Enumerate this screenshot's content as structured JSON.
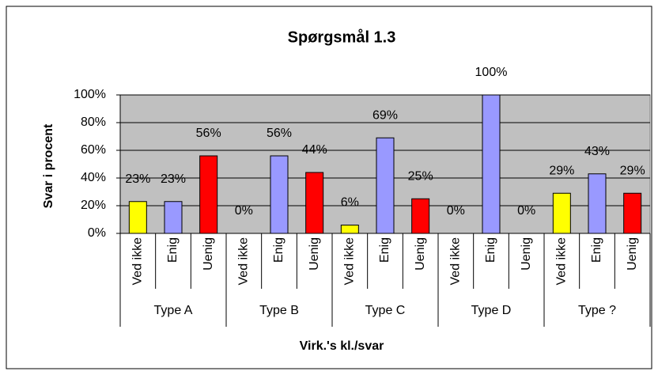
{
  "chart_data": {
    "type": "bar",
    "title": "Spørgsmål 1.3",
    "xlabel": "Virk.'s kl./svar",
    "ylabel": "Svar i procent",
    "categories": [
      "Type A",
      "Type B",
      "Type C",
      "Type D",
      "Type ?"
    ],
    "series": [
      {
        "name": "Ved ikke",
        "color": "#ffff00",
        "values": [
          23,
          0,
          6,
          0,
          29
        ],
        "value_labels": [
          "23%",
          "0%",
          "6%",
          "0%",
          "29%"
        ]
      },
      {
        "name": "Enig",
        "color": "#9999ff",
        "values": [
          23,
          56,
          69,
          100,
          43
        ],
        "value_labels": [
          "23%",
          "56%",
          "69%",
          "100%",
          "43%"
        ]
      },
      {
        "name": "Uenig",
        "color": "#ff0000",
        "values": [
          56,
          44,
          25,
          0,
          29
        ],
        "value_labels": [
          "56%",
          "44%",
          "25%",
          "0%",
          "29%"
        ]
      }
    ],
    "ylim": [
      0,
      100
    ],
    "yticks": [
      {
        "value": 0,
        "label": "0%"
      },
      {
        "value": 20,
        "label": "20%"
      },
      {
        "value": 40,
        "label": "40%"
      },
      {
        "value": 60,
        "label": "60%"
      },
      {
        "value": 80,
        "label": "80%"
      },
      {
        "value": 100,
        "label": "100%"
      }
    ],
    "plot_background": "#c0c0c0"
  }
}
